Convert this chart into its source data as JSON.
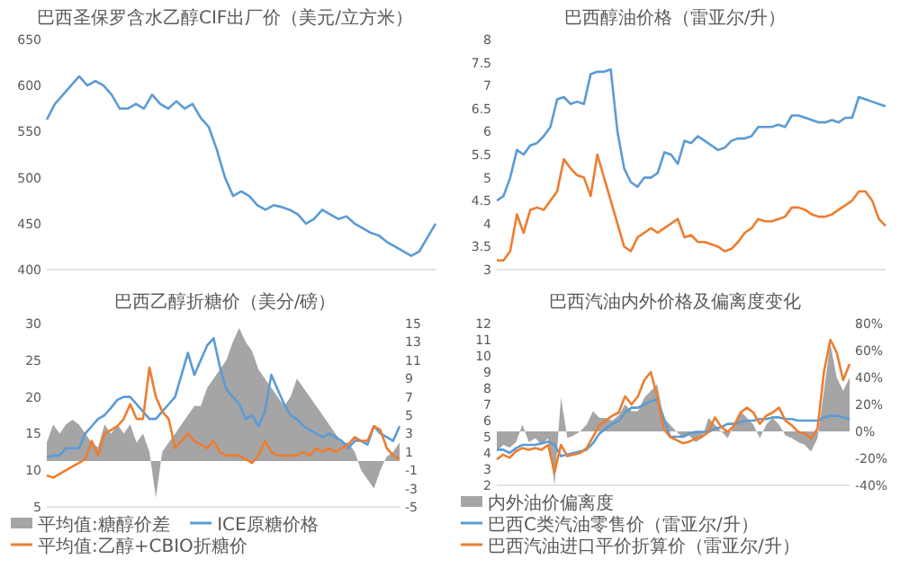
{
  "chart_data": [
    {
      "type": "line",
      "title": "巴西圣保罗含水乙醇CIF出厂价（美元/立方米）",
      "tick_labels": "y",
      "ylim": [
        400,
        650
      ],
      "yticks": [
        400,
        450,
        500,
        550,
        600,
        650
      ],
      "categories": [
        null,
        null,
        null,
        null,
        null,
        null,
        null,
        null,
        null,
        null,
        null,
        null,
        null,
        null,
        null,
        null,
        null,
        null,
        null,
        null,
        null,
        null,
        null,
        null,
        null,
        null,
        null,
        null,
        null,
        null,
        null,
        null,
        null,
        null,
        null,
        null,
        null,
        null,
        null,
        null,
        null,
        null,
        null,
        null,
        null,
        null,
        null,
        null,
        null
      ],
      "series": [
        {
          "color": "#5b9bd5",
          "values": [
            563,
            580,
            590,
            600,
            610,
            600,
            605,
            600,
            590,
            575,
            575,
            580,
            575,
            590,
            580,
            575,
            583,
            575,
            580,
            565,
            555,
            530,
            500,
            480,
            485,
            480,
            470,
            465,
            470,
            468,
            465,
            460,
            450,
            455,
            465,
            460,
            455,
            458,
            450,
            445,
            440,
            437,
            430,
            425,
            420,
            415,
            420,
            435,
            450
          ]
        }
      ]
    },
    {
      "type": "line",
      "title": "巴西醇油价格（雷亚尔/升）",
      "tick_labels": "y",
      "ylim": [
        3,
        8
      ],
      "yticks": [
        3,
        3.5,
        4,
        4.5,
        5,
        5.5,
        6,
        6.5,
        7,
        7.5,
        8
      ],
      "categories": [
        null,
        null,
        null,
        null,
        null,
        null,
        null,
        null,
        null,
        null,
        null,
        null,
        null,
        null,
        null,
        null,
        null,
        null,
        null,
        null,
        null,
        null,
        null,
        null,
        null,
        null,
        null,
        null,
        null,
        null,
        null,
        null,
        null,
        null,
        null,
        null,
        null,
        null,
        null,
        null,
        null,
        null,
        null,
        null,
        null,
        null,
        null,
        null,
        null,
        null,
        null,
        null,
        null,
        null,
        null,
        null,
        null,
        null,
        null
      ],
      "series": [
        {
          "color": "#5b9bd5",
          "values": [
            4.5,
            4.6,
            5.0,
            5.6,
            5.5,
            5.7,
            5.75,
            5.9,
            6.1,
            6.7,
            6.75,
            6.6,
            6.65,
            6.6,
            7.25,
            7.3,
            7.3,
            7.35,
            6.0,
            5.2,
            4.9,
            4.8,
            5.0,
            5.0,
            5.1,
            5.55,
            5.5,
            5.3,
            5.8,
            5.75,
            5.9,
            5.8,
            5.7,
            5.6,
            5.65,
            5.8,
            5.85,
            5.85,
            5.9,
            6.1,
            6.1,
            6.1,
            6.15,
            6.1,
            6.35,
            6.35,
            6.3,
            6.25,
            6.2,
            6.2,
            6.25,
            6.2,
            6.3,
            6.3,
            6.75,
            6.7,
            6.65,
            6.6,
            6.55
          ]
        },
        {
          "color": "#ed7d31",
          "values": [
            3.2,
            3.2,
            3.4,
            4.2,
            3.8,
            4.3,
            4.35,
            4.3,
            4.5,
            4.7,
            5.4,
            5.2,
            5.05,
            5.0,
            4.6,
            5.5,
            5.0,
            4.5,
            4.0,
            3.5,
            3.4,
            3.7,
            3.8,
            3.9,
            3.8,
            3.9,
            4.0,
            4.1,
            3.7,
            3.75,
            3.6,
            3.6,
            3.55,
            3.5,
            3.4,
            3.45,
            3.6,
            3.8,
            3.9,
            4.1,
            4.05,
            4.05,
            4.1,
            4.15,
            4.35,
            4.35,
            4.3,
            4.2,
            4.15,
            4.15,
            4.2,
            4.3,
            4.4,
            4.5,
            4.7,
            4.7,
            4.5,
            4.1,
            3.95
          ]
        }
      ]
    },
    {
      "type": "line",
      "title": "巴西乙醇折糖价（美分/磅）",
      "tick_labels": "y",
      "legend": "bottom",
      "ylim": [
        5,
        30
      ],
      "yticks": [
        5,
        10,
        15,
        20,
        25,
        30
      ],
      "y2lim": [
        -5,
        15
      ],
      "y2ticks": [
        -5,
        -3,
        -1,
        1,
        3,
        5,
        7,
        9,
        11,
        13,
        15
      ],
      "categories": [
        null,
        null,
        null,
        null,
        null,
        null,
        null,
        null,
        null,
        null,
        null,
        null,
        null,
        null,
        null,
        null,
        null,
        null,
        null,
        null,
        null,
        null,
        null,
        null,
        null,
        null,
        null,
        null,
        null,
        null,
        null,
        null,
        null,
        null,
        null,
        null,
        null,
        null,
        null,
        null,
        null,
        null,
        null,
        null,
        null,
        null,
        null,
        null,
        null,
        null,
        null,
        null,
        null,
        null,
        null,
        null
      ],
      "series": [
        {
          "name": "平均值:糖醇价差",
          "type": "area",
          "axis": "y2",
          "color": "#a5a5a5",
          "values": [
            2,
            4,
            3,
            4,
            4.5,
            4,
            3,
            2,
            1.5,
            4,
            3,
            4,
            3,
            4,
            2,
            3,
            1,
            -4,
            1,
            2,
            3,
            4,
            5,
            6,
            6,
            8,
            9,
            10,
            11,
            13,
            14.5,
            13,
            12,
            10,
            9,
            8,
            7,
            6,
            7,
            9,
            8,
            7,
            6,
            5,
            4,
            3,
            2,
            2,
            1,
            -1,
            -2,
            -3,
            -1,
            0.5,
            1,
            2
          ]
        },
        {
          "name": "ICE原糖价格",
          "color": "#5b9bd5",
          "values": [
            11.8,
            12,
            12,
            13,
            13,
            13,
            15,
            16,
            17,
            17.5,
            18.5,
            19.6,
            20,
            20,
            19,
            18,
            17,
            17,
            18,
            19,
            20,
            23,
            26,
            23,
            25,
            27,
            28,
            24,
            21,
            20,
            19,
            17,
            17.5,
            16,
            18,
            23,
            21,
            19,
            17.5,
            17,
            16,
            15.5,
            15,
            14.5,
            15,
            14.5,
            14,
            13,
            14,
            14,
            13.5,
            16,
            15,
            14.5,
            14,
            16
          ]
        },
        {
          "name": "平均值:乙醇+CBIO折糖价",
          "color": "#ed7d31",
          "values": [
            9.3,
            9,
            9.5,
            10,
            10.5,
            11,
            11.5,
            14,
            12,
            15,
            15.5,
            16,
            17,
            19,
            17,
            17,
            24,
            20,
            18,
            17,
            13,
            14,
            15,
            14,
            13.5,
            13,
            14,
            12.5,
            12,
            12,
            12,
            11.5,
            11,
            12,
            14,
            12.5,
            12,
            12,
            12,
            12,
            12.5,
            12,
            13,
            12.5,
            13,
            12.5,
            13,
            13.5,
            14.5,
            14,
            14,
            16,
            15.5,
            13,
            12,
            11.5
          ]
        }
      ]
    },
    {
      "type": "line",
      "title": "巴西汽油内外价格及偏离度变化",
      "tick_labels": "y",
      "legend": "bottom",
      "ylim": [
        2,
        12
      ],
      "yticks": [
        2,
        3,
        4,
        5,
        6,
        7,
        8,
        9,
        10,
        11,
        12
      ],
      "y2lim": [
        -40,
        80
      ],
      "y2ticks": [
        {
          "value": -40,
          "label": "-40%"
        },
        {
          "value": -20,
          "label": "-20%"
        },
        {
          "value": 0,
          "label": "0%"
        },
        {
          "value": 20,
          "label": "20%"
        },
        {
          "value": 40,
          "label": "40%"
        },
        {
          "value": 60,
          "label": "60%"
        },
        {
          "value": 80,
          "label": "80%"
        }
      ],
      "categories": [
        null,
        null,
        null,
        null,
        null,
        null,
        null,
        null,
        null,
        null,
        null,
        null,
        null,
        null,
        null,
        null,
        null,
        null,
        null,
        null,
        null,
        null,
        null,
        null,
        null,
        null,
        null,
        null,
        null,
        null,
        null,
        null,
        null,
        null,
        null,
        null,
        null,
        null,
        null,
        null,
        null,
        null,
        null,
        null,
        null,
        null,
        null,
        null,
        null,
        null,
        null,
        null,
        null,
        null,
        null,
        null
      ],
      "series": [
        {
          "name": "内外油价偏离度",
          "type": "area",
          "axis": "y2",
          "color": "#a5a5a5",
          "values": [
            -15,
            -10,
            -12,
            -8,
            5,
            -8,
            -5,
            -10,
            -5,
            -40,
            25,
            -5,
            -3,
            0,
            5,
            15,
            10,
            10,
            8,
            12,
            20,
            15,
            15,
            25,
            30,
            35,
            10,
            5,
            0,
            -5,
            -3,
            -8,
            -5,
            10,
            5,
            0,
            -5,
            5,
            15,
            10,
            5,
            -5,
            5,
            10,
            5,
            -3,
            -5,
            -8,
            -10,
            -15,
            -5,
            30,
            65,
            40,
            30,
            40
          ]
        },
        {
          "name": "巴西C类汽油零售价（雷亚尔/升）",
          "color": "#5b9bd5",
          "values": [
            4.2,
            4.2,
            4.0,
            4.3,
            4.5,
            4.5,
            4.5,
            4.6,
            4.7,
            4.5,
            3.8,
            3.9,
            4.0,
            4.1,
            4.2,
            4.6,
            5.2,
            5.5,
            5.8,
            6.0,
            6.5,
            6.8,
            6.8,
            7.0,
            7.2,
            7.3,
            6.2,
            5.0,
            5.0,
            5.0,
            5.2,
            5.3,
            5.3,
            5.3,
            5.5,
            5.6,
            5.8,
            5.8,
            5.9,
            6.0,
            6.0,
            6.1,
            6.1,
            6.2,
            6.2,
            6.1,
            6.1,
            6.0,
            6.0,
            6.0,
            6.0,
            6.2,
            6.3,
            6.3,
            6.2,
            6.1
          ]
        },
        {
          "name": "巴西汽油进口平价折算价（雷亚尔/升）",
          "color": "#ed7d31",
          "values": [
            3.6,
            3.9,
            3.7,
            4.1,
            4.3,
            4.2,
            4.3,
            4.2,
            4.5,
            2.8,
            4.5,
            3.8,
            3.9,
            4.0,
            4.3,
            5.0,
            5.7,
            6.0,
            6.3,
            6.5,
            7.5,
            7.0,
            7.5,
            8.5,
            9.0,
            7.5,
            5.5,
            5.0,
            4.8,
            4.6,
            4.7,
            4.9,
            5.0,
            5.3,
            6.2,
            5.6,
            5.3,
            5.7,
            6.5,
            6.8,
            6.5,
            5.8,
            6.3,
            6.5,
            6.8,
            6.0,
            5.7,
            5.3,
            5.2,
            4.9,
            5.5,
            9.0,
            11.0,
            10.2,
            8.5,
            9.5
          ]
        }
      ]
    }
  ]
}
